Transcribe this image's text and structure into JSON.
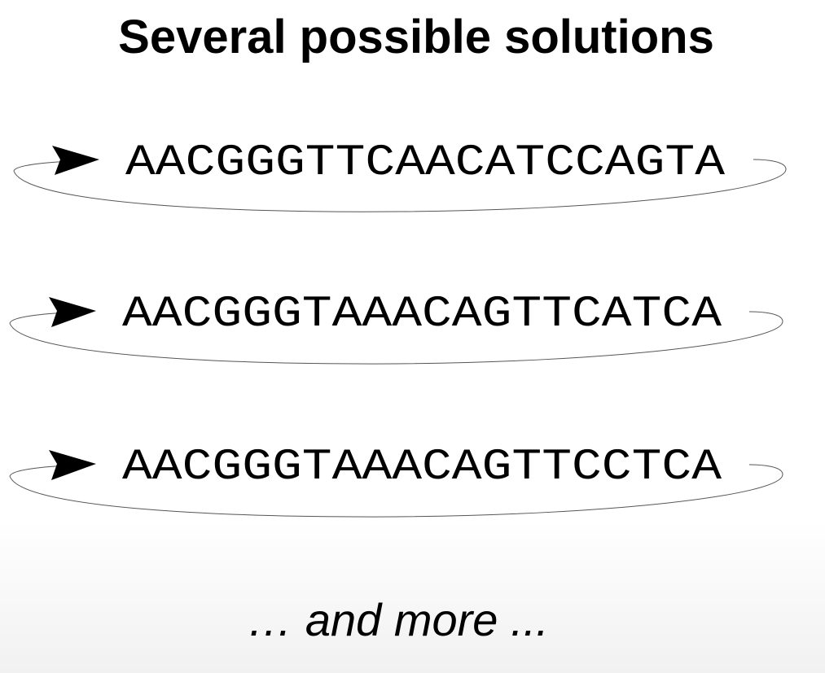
{
  "title": "Several possible solutions",
  "solutions": [
    {
      "sequence": "AACGGGTTCAACATCCAGTA"
    },
    {
      "sequence": "AACGGGTAAACAGTTCATCA"
    },
    {
      "sequence": "AACGGGTAAACAGTTCCTCA"
    }
  ],
  "footer_text": "… and more ...",
  "icons": [
    "arrowhead-icon"
  ],
  "colors": {
    "text": "#000000",
    "loop_line": "#555555"
  }
}
